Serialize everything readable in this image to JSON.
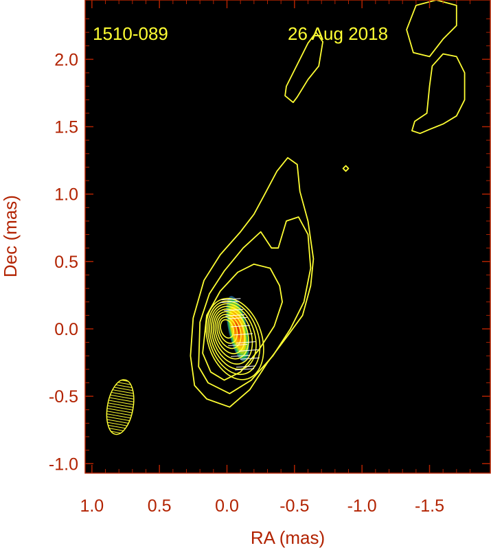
{
  "chart_data": {
    "type": "heatmap",
    "source_name": "1510-089",
    "date": "26 Aug 2018",
    "xlabel": "RA (mas)",
    "ylabel": "Dec (mas)",
    "xlim": [
      1.05,
      -1.95
    ],
    "ylim": [
      -1.07,
      2.44
    ],
    "x_ticks": [
      1.0,
      0.5,
      0.0,
      -0.5,
      -1.0,
      -1.5
    ],
    "x_tick_labels": [
      "1.0",
      "0.5",
      "0.0",
      "-0.5",
      "-1.0",
      "-1.5"
    ],
    "y_ticks": [
      -1.0,
      -0.5,
      0.0,
      0.5,
      1.0,
      1.5,
      2.0
    ],
    "y_tick_labels": [
      "-1.0",
      "-0.5",
      "0.0",
      "0.5",
      "1.0",
      "1.5",
      "2.0"
    ],
    "background_color": "#000000",
    "contour_color": "#ffff33",
    "label_color": "#b22200",
    "beam": {
      "center": [
        0.79,
        -0.58
      ],
      "major_mas": 0.41,
      "minor_mas": 0.19,
      "pa_deg": 10
    },
    "core_contours": {
      "center": [
        0.0,
        0.0
      ],
      "semi_major_mas": [
        0.07,
        0.1,
        0.13,
        0.16,
        0.19,
        0.22,
        0.25,
        0.28,
        0.31
      ],
      "axis_ratio": 1.55,
      "pa_deg": 18
    },
    "jet_contours": [
      [
        [
          0.15,
          -0.52
        ],
        [
          0.24,
          -0.42
        ],
        [
          0.27,
          -0.2
        ],
        [
          0.25,
          0.08
        ],
        [
          0.17,
          0.36
        ],
        [
          0.05,
          0.55
        ],
        [
          -0.1,
          0.72
        ],
        [
          -0.2,
          0.85
        ],
        [
          -0.28,
          1.0
        ],
        [
          -0.37,
          1.17
        ],
        [
          -0.45,
          1.27
        ],
        [
          -0.52,
          1.22
        ],
        [
          -0.54,
          1.02
        ],
        [
          -0.6,
          0.8
        ],
        [
          -0.64,
          0.52
        ],
        [
          -0.62,
          0.32
        ],
        [
          -0.56,
          0.1
        ],
        [
          -0.45,
          -0.05
        ],
        [
          -0.3,
          -0.25
        ],
        [
          -0.17,
          -0.45
        ],
        [
          -0.02,
          -0.58
        ],
        [
          0.15,
          -0.52
        ]
      ],
      [
        [
          0.14,
          -0.4
        ],
        [
          0.21,
          -0.28
        ],
        [
          0.2,
          0.05
        ],
        [
          0.13,
          0.26
        ],
        [
          0.02,
          0.43
        ],
        [
          -0.12,
          0.6
        ],
        [
          -0.25,
          0.72
        ],
        [
          -0.33,
          0.6
        ],
        [
          -0.38,
          0.6
        ],
        [
          -0.44,
          0.8
        ],
        [
          -0.53,
          0.83
        ],
        [
          -0.6,
          0.7
        ],
        [
          -0.62,
          0.45
        ],
        [
          -0.57,
          0.2
        ],
        [
          -0.47,
          0.0
        ],
        [
          -0.34,
          -0.2
        ],
        [
          -0.18,
          -0.38
        ],
        [
          -0.02,
          -0.48
        ],
        [
          0.14,
          -0.4
        ]
      ],
      [
        [
          0.12,
          -0.32
        ],
        [
          0.18,
          -0.18
        ],
        [
          0.15,
          0.1
        ],
        [
          0.05,
          0.28
        ],
        [
          -0.08,
          0.42
        ],
        [
          -0.2,
          0.48
        ],
        [
          -0.32,
          0.45
        ],
        [
          -0.39,
          0.32
        ],
        [
          -0.41,
          0.2
        ],
        [
          -0.35,
          0.02
        ],
        [
          -0.24,
          -0.15
        ],
        [
          -0.1,
          -0.32
        ],
        [
          0.02,
          -0.38
        ],
        [
          0.12,
          -0.32
        ]
      ]
    ],
    "isolated_contours": [
      [
        [
          -0.49,
          1.68
        ],
        [
          -0.43,
          1.73
        ],
        [
          -0.44,
          1.8
        ],
        [
          -0.6,
          2.12
        ],
        [
          -0.66,
          2.2
        ],
        [
          -0.71,
          2.13
        ],
        [
          -0.68,
          1.95
        ],
        [
          -0.6,
          1.85
        ],
        [
          -0.52,
          1.72
        ],
        [
          -0.49,
          1.68
        ]
      ],
      [
        [
          -1.38,
          2.05
        ],
        [
          -1.33,
          2.22
        ],
        [
          -1.4,
          2.4
        ],
        [
          -1.55,
          2.44
        ],
        [
          -1.7,
          2.4
        ],
        [
          -1.7,
          2.25
        ],
        [
          -1.6,
          2.15
        ],
        [
          -1.5,
          2.02
        ],
        [
          -1.38,
          2.05
        ]
      ],
      [
        [
          -1.37,
          1.47
        ],
        [
          -1.39,
          1.54
        ],
        [
          -1.48,
          1.6
        ],
        [
          -1.5,
          1.8
        ],
        [
          -1.52,
          1.95
        ],
        [
          -1.6,
          2.04
        ],
        [
          -1.7,
          2.02
        ],
        [
          -1.76,
          1.9
        ],
        [
          -1.76,
          1.7
        ],
        [
          -1.7,
          1.58
        ],
        [
          -1.6,
          1.52
        ],
        [
          -1.5,
          1.48
        ],
        [
          -1.43,
          1.45
        ],
        [
          -1.37,
          1.47
        ]
      ],
      [
        [
          -0.88,
          1.17
        ],
        [
          -0.86,
          1.19
        ],
        [
          -0.88,
          1.21
        ],
        [
          -0.9,
          1.19
        ],
        [
          -0.88,
          1.17
        ]
      ]
    ],
    "polarized_emission": {
      "center": [
        -0.08,
        0.0
      ],
      "semi_major_mas": 0.25,
      "semi_minor_mas": 0.07,
      "pa_deg": 12,
      "colors": [
        "#224488",
        "#22bb55",
        "#eedd00",
        "#ff8800",
        "#dd2200"
      ]
    },
    "evpa_vectors": [
      [
        -0.02,
        0.2
      ],
      [
        -0.05,
        0.14
      ],
      [
        -0.08,
        0.08
      ],
      [
        -0.1,
        0.02
      ],
      [
        -0.12,
        -0.04
      ],
      [
        -0.14,
        -0.1
      ],
      [
        -0.16,
        -0.16
      ],
      [
        -0.17,
        -0.22
      ],
      [
        -0.14,
        -0.28
      ],
      [
        -0.06,
        0.1
      ],
      [
        -0.08,
        -0.12
      ],
      [
        -0.1,
        -0.2
      ],
      [
        -0.03,
        0.22
      ],
      [
        -0.13,
        -0.3
      ]
    ]
  }
}
